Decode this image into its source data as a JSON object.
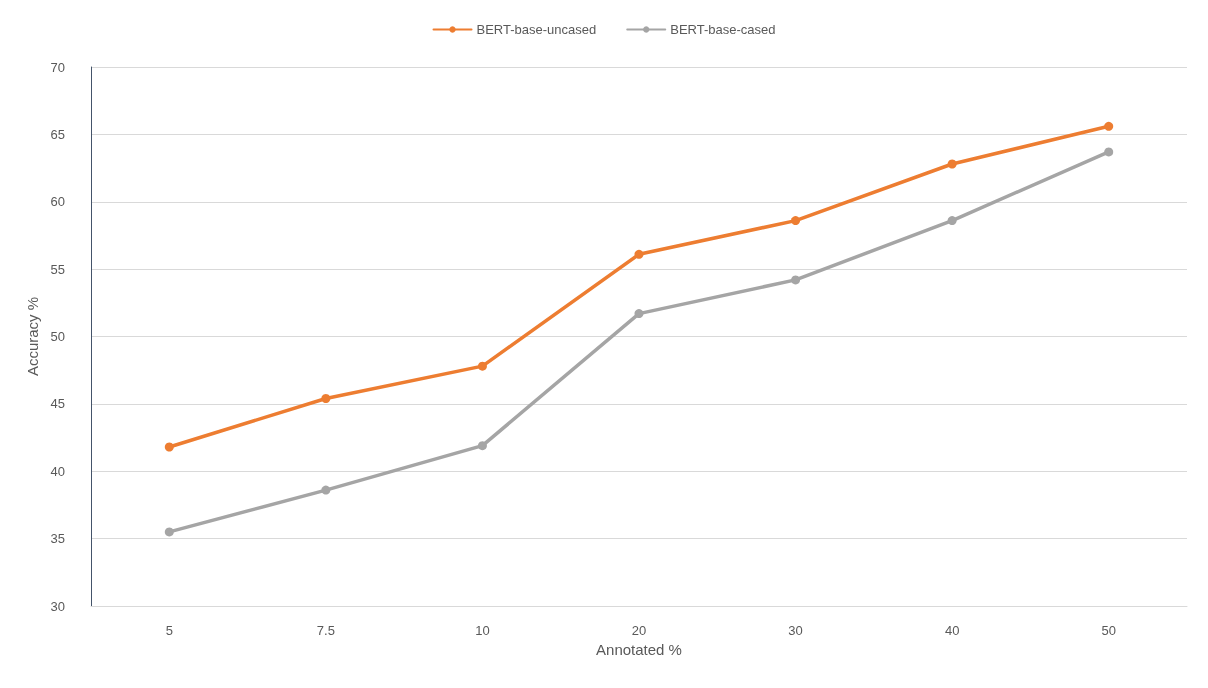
{
  "chart_data": {
    "type": "line",
    "xlabel": "Annotated %",
    "ylabel": "Accuracy %",
    "categories": [
      "5",
      "7.5",
      "10",
      "20",
      "30",
      "40",
      "50"
    ],
    "series": [
      {
        "name": "BERT-base-uncased",
        "color": "#ed7d31",
        "values": [
          41.8,
          45.4,
          47.8,
          56.1,
          58.6,
          62.8,
          65.6
        ]
      },
      {
        "name": "BERT-base-cased",
        "color": "#a5a5a5",
        "values": [
          35.5,
          38.6,
          41.9,
          51.7,
          54.2,
          58.6,
          63.7
        ]
      }
    ],
    "ylim": [
      30,
      70
    ],
    "yticks": [
      30,
      35,
      40,
      45,
      50,
      55,
      60,
      65,
      70
    ],
    "grid": "y",
    "legend": "top",
    "marker": "circle",
    "line_style": "solid"
  }
}
